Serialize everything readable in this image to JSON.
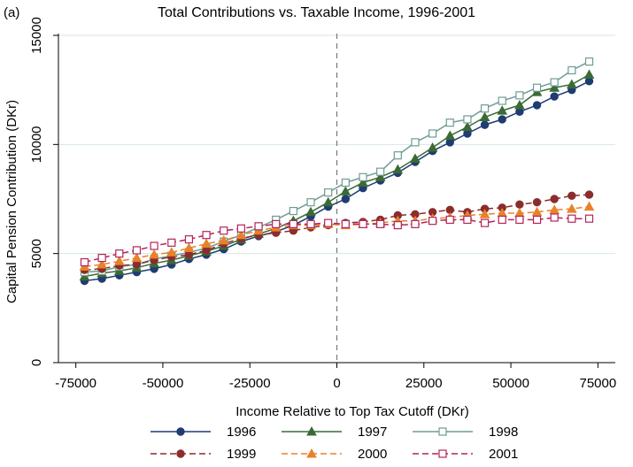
{
  "panel_label": "(a)",
  "chart_data": {
    "type": "line",
    "title": "Total Contributions vs. Taxable Income, 1996-2001",
    "xlabel": "Income Relative to Top Tax Cutoff (DKr)",
    "ylabel": "Capital Pension Contribution (DKr)",
    "xlim": [
      -80000,
      80000
    ],
    "ylim": [
      0,
      15000
    ],
    "xticks": [
      -75000,
      -50000,
      -25000,
      0,
      25000,
      50000,
      75000
    ],
    "xtick_labels": [
      "-75000",
      "-50000",
      "-25000",
      "0",
      "25000",
      "50000",
      "75000"
    ],
    "yticks": [
      0,
      5000,
      10000,
      15000
    ],
    "ytick_labels": [
      "0",
      "5000",
      "10000",
      "15000"
    ],
    "grid": "horizontal",
    "reference_line_x": 0,
    "legend_position": "bottom",
    "x": [
      -72500,
      -67500,
      -62500,
      -57500,
      -52500,
      -47500,
      -42500,
      -37500,
      -32500,
      -27500,
      -22500,
      -17500,
      -12500,
      -7500,
      -2500,
      2500,
      7500,
      12500,
      17500,
      22500,
      27500,
      32500,
      37500,
      42500,
      47500,
      52500,
      57500,
      62500,
      67500,
      72500
    ],
    "series": [
      {
        "name": "1996",
        "color": "#1f3c73",
        "dash": "solid",
        "marker": "circle-filled",
        "values": [
          3750,
          3850,
          4000,
          4150,
          4300,
          4500,
          4750,
          4950,
          5200,
          5550,
          5800,
          6000,
          6300,
          6700,
          7150,
          7500,
          8000,
          8350,
          8700,
          9200,
          9700,
          10100,
          10500,
          10900,
          11150,
          11500,
          11800,
          12200,
          12500,
          12900
        ]
      },
      {
        "name": "1997",
        "color": "#3a6b35",
        "dash": "solid",
        "marker": "triangle-filled",
        "values": [
          3950,
          4100,
          4200,
          4350,
          4550,
          4700,
          4900,
          5100,
          5350,
          5650,
          5900,
          6150,
          6500,
          6900,
          7350,
          7850,
          8250,
          8500,
          8850,
          9350,
          9850,
          10400,
          10800,
          11250,
          11550,
          11800,
          12400,
          12600,
          12750,
          13200
        ]
      },
      {
        "name": "1998",
        "color": "#6f9c95",
        "dash": "solid",
        "marker": "square-hollow",
        "values": [
          4150,
          4200,
          4400,
          4500,
          4750,
          4900,
          5050,
          5250,
          5550,
          5850,
          6200,
          6550,
          6950,
          7350,
          7800,
          8250,
          8500,
          8750,
          9500,
          10100,
          10500,
          11000,
          11150,
          11650,
          12000,
          12250,
          12600,
          12850,
          13400,
          13800
        ]
      },
      {
        "name": "1999",
        "color": "#8c2c2c",
        "dash": "dashed",
        "marker": "circle-filled",
        "values": [
          4250,
          4300,
          4450,
          4500,
          4700,
          4850,
          4950,
          5150,
          5450,
          5700,
          5850,
          5950,
          6050,
          6200,
          6300,
          6400,
          6450,
          6550,
          6750,
          6800,
          6900,
          7000,
          6900,
          7050,
          7100,
          7250,
          7350,
          7500,
          7650,
          7700
        ]
      },
      {
        "name": "2000",
        "color": "#e8822a",
        "dash": "dashed",
        "marker": "triangle-filled",
        "values": [
          4400,
          4500,
          4650,
          4800,
          4950,
          5050,
          5250,
          5450,
          5600,
          5850,
          6050,
          6200,
          6300,
          6300,
          6350,
          6300,
          6350,
          6400,
          6500,
          6500,
          6600,
          6650,
          6750,
          6800,
          6850,
          6850,
          6900,
          7000,
          7050,
          7150
        ]
      },
      {
        "name": "2001",
        "color": "#b3245b",
        "dash": "dashed",
        "marker": "square-hollow",
        "values": [
          4600,
          4800,
          5000,
          5150,
          5350,
          5500,
          5650,
          5850,
          6050,
          6150,
          6250,
          6350,
          6350,
          6350,
          6400,
          6350,
          6350,
          6350,
          6300,
          6350,
          6500,
          6550,
          6550,
          6400,
          6550,
          6550,
          6550,
          6650,
          6600,
          6600
        ]
      }
    ]
  }
}
